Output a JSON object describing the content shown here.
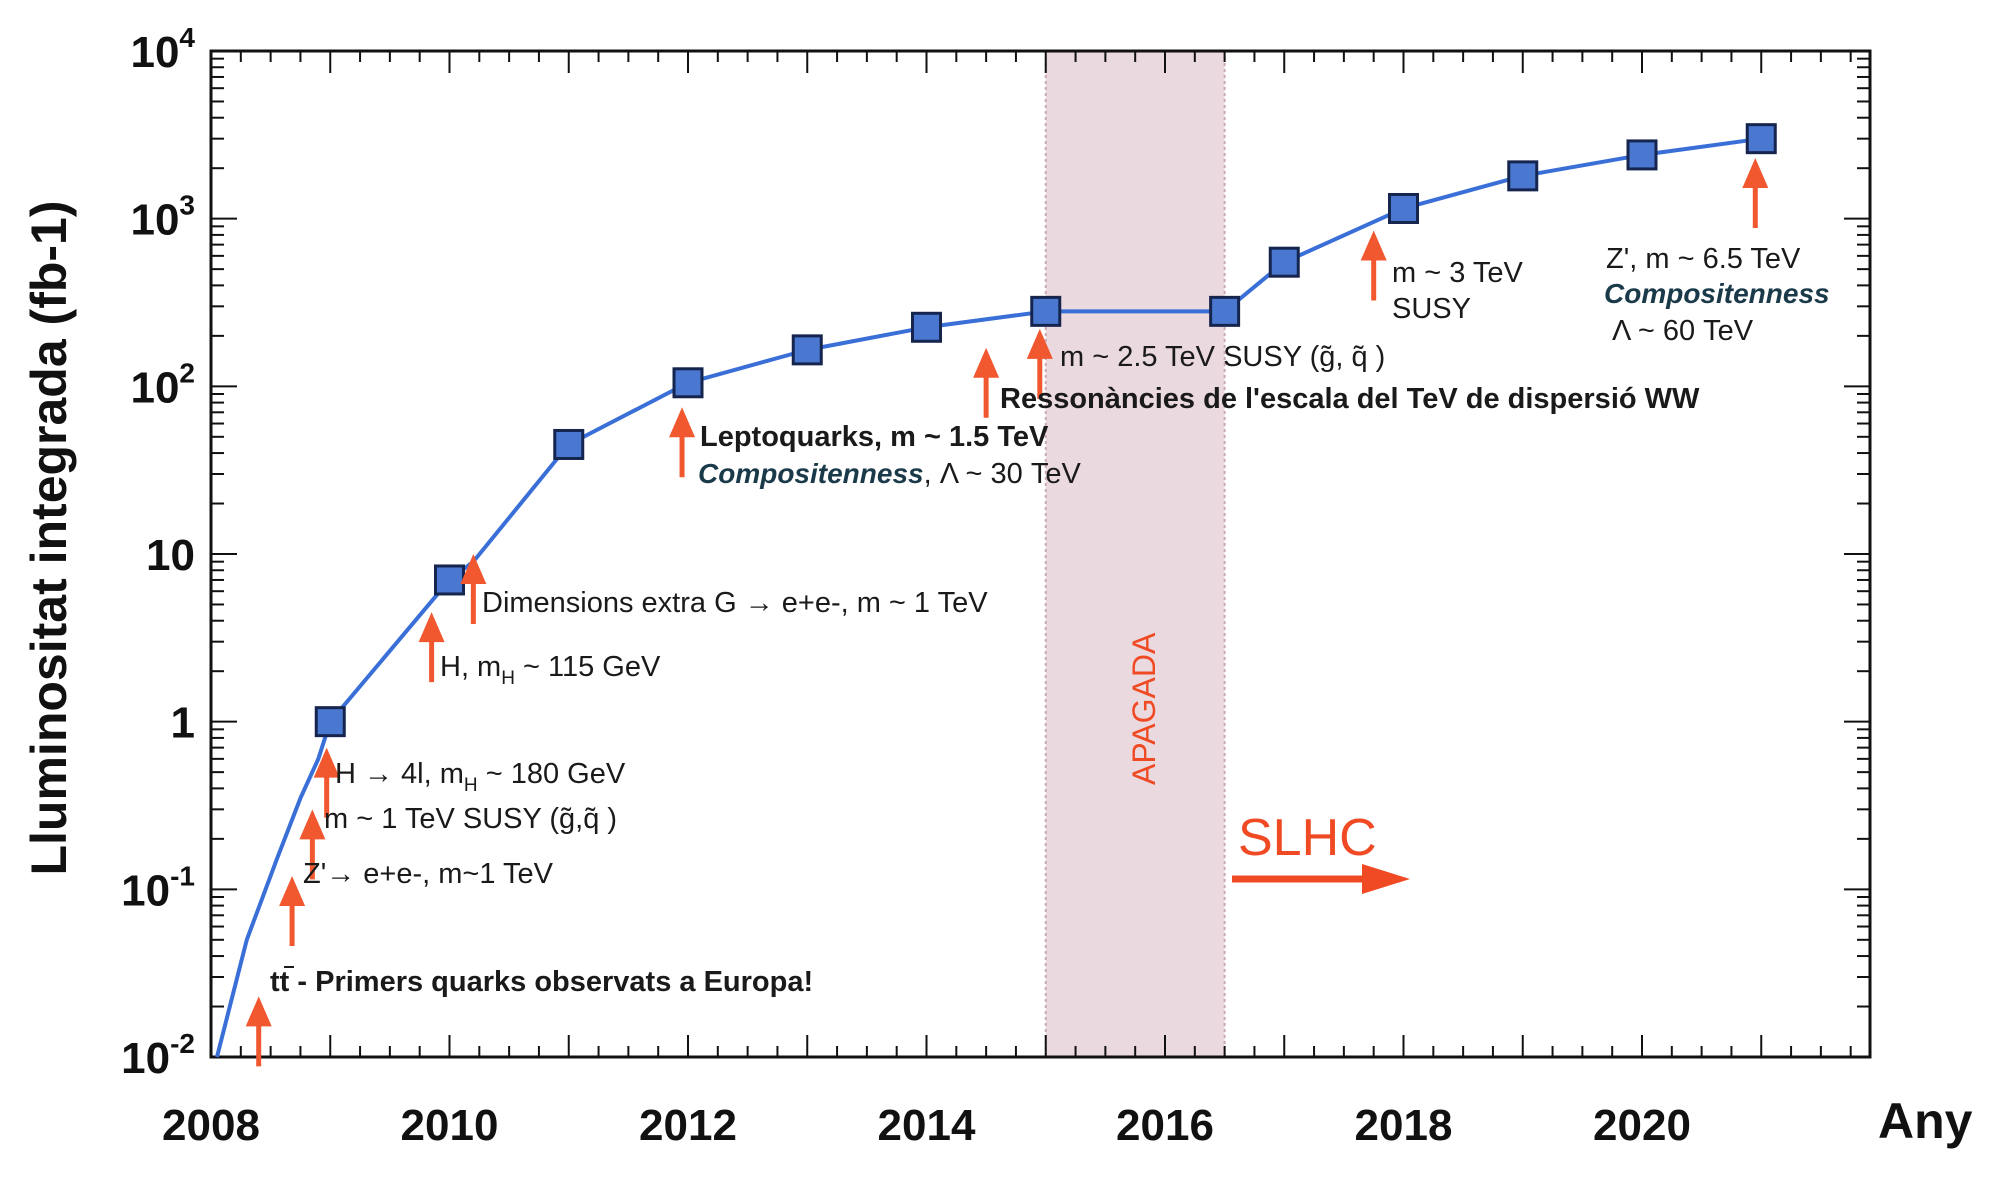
{
  "chart_data": {
    "type": "line",
    "title": "",
    "xlabel": "Any",
    "ylabel": "Lluminositat integrada (fb-1)",
    "xlim": [
      2008,
      2021.9
    ],
    "ylim": [
      0.01,
      10000
    ],
    "y_scale": "log",
    "x_ticks": [
      "2008",
      "2010",
      "2012",
      "2014",
      "2016",
      "2018",
      "2020"
    ],
    "y_ticks": [
      {
        "value": 0.01,
        "base": "10",
        "exp": "-2"
      },
      {
        "value": 0.1,
        "base": "10",
        "exp": "-1"
      },
      {
        "value": 1,
        "base": "1",
        "exp": ""
      },
      {
        "value": 10,
        "base": "10",
        "exp": ""
      },
      {
        "value": 100,
        "base": "10",
        "exp": "2"
      },
      {
        "value": 1000,
        "base": "10",
        "exp": "3"
      },
      {
        "value": 10000,
        "base": "10",
        "exp": "4"
      }
    ],
    "series": [
      {
        "name": "Lluminositat integrada",
        "line_x": [
          2008.05,
          2008.3,
          2008.55,
          2008.75,
          2008.9,
          2009.0,
          2010.0,
          2010.2,
          2011.0,
          2012.0,
          2013.0,
          2014.0,
          2015.0,
          2016.5,
          2017.0,
          2018.0,
          2019.0,
          2020.0,
          2021.0
        ],
        "line_y": [
          0.01,
          0.05,
          0.15,
          0.35,
          0.6,
          1,
          7,
          9,
          45,
          105,
          165,
          225,
          280,
          280,
          550,
          1150,
          1800,
          2400,
          3000
        ],
        "markers_x": [
          2009,
          2010,
          2011,
          2012,
          2013,
          2014,
          2015,
          2016.5,
          2017,
          2018,
          2019,
          2020,
          2021
        ],
        "markers_y": [
          1,
          7,
          45,
          105,
          165,
          225,
          280,
          280,
          550,
          1150,
          1800,
          2400,
          3000
        ]
      }
    ],
    "shaded_region": {
      "x": [
        2015,
        2016.5
      ],
      "label": "APAGADA"
    },
    "arrows": [
      {
        "x": 2008.4,
        "y": 0.023
      },
      {
        "x": 2008.68,
        "y": 0.12
      },
      {
        "x": 2008.85,
        "y": 0.3
      },
      {
        "x": 2008.97,
        "y": 0.7
      },
      {
        "x": 2009.85,
        "y": 4.5
      },
      {
        "x": 2010.2,
        "y": 10
      },
      {
        "x": 2011.95,
        "y": 75
      },
      {
        "x": 2014.5,
        "y": 170
      },
      {
        "x": 2014.95,
        "y": 220
      },
      {
        "x": 2017.75,
        "y": 850
      },
      {
        "x": 2020.95,
        "y": 2300
      }
    ],
    "annotations": {
      "tt_pre": "tt",
      "tt_post": " - Primers quarks observats a Europa!",
      "zprime": "Z'→ e+e-, m~1 TeV",
      "susy1": "m ~ 1 TeV SUSY (g̃,q̃ )",
      "h4l_pre": "H → 4l, m",
      "h4l_sub": "H",
      "h4l_post": " ~ 180 GeV",
      "h115_pre": "H, m",
      "h115_sub": "H",
      "h115_post": " ~ 115 GeV",
      "dimensions": "Dimensions extra G → e+e-, m ~ 1 TeV",
      "lepto_1": "Leptoquarks, m ~ 1.5 TeV",
      "lepto_2_italic": "Compositenness",
      "lepto_2_rest": ", Λ ~ 30 TeV",
      "susy25": "m ~ 2.5 TeV SUSY (g̃, q̃ )",
      "ressonancies": "Ressonàncies de l'escala del TeV de dispersió WW",
      "m3_1": "m ~ 3 TeV",
      "m3_2": "SUSY",
      "z65_1": "Z', m ~ 6.5 TeV",
      "z65_2": "Compositenness",
      "z65_3": "Λ ~ 60 TeV",
      "slhc": "SLHC"
    },
    "colors": {
      "line": "#3a6fd8",
      "marker_fill": "#4a78d0",
      "marker_edge": "#15254e",
      "arrow": "#f2582f",
      "shade": "#ead9de"
    }
  }
}
